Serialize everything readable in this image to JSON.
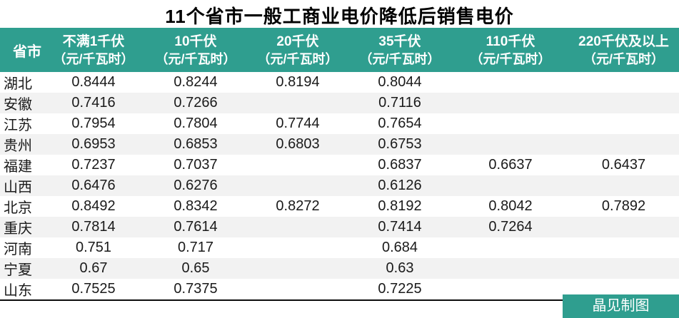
{
  "title": "11个省市一般工商业电价降低后销售电价",
  "footer": {
    "credit": "晶见制图"
  },
  "colors": {
    "header_bg": "#2F9E8F",
    "stripe": "#F2F2F2",
    "border": "#0D0D0D",
    "header_text": "#FFFFFF"
  },
  "chart_data": {
    "type": "table",
    "title": "11个省市一般工商业电价降低后销售电价",
    "columns": [
      {
        "label": "省市",
        "unit": ""
      },
      {
        "label": "不满1千伏",
        "unit": "（元/千瓦时）"
      },
      {
        "label": "10千伏",
        "unit": "（元/千瓦时）"
      },
      {
        "label": "20千伏",
        "unit": "（元/千瓦时）"
      },
      {
        "label": "35千伏",
        "unit": "（元/千瓦时）"
      },
      {
        "label": "110千伏",
        "unit": "（元/千瓦时）"
      },
      {
        "label": "220千伏及以上",
        "unit": "（元/千瓦时）"
      }
    ],
    "rows": [
      {
        "province": "湖北",
        "values": [
          "0.8444",
          "0.8244",
          "0.8194",
          "0.8044",
          "",
          ""
        ]
      },
      {
        "province": "安徽",
        "values": [
          "0.7416",
          "0.7266",
          "",
          "0.7116",
          "",
          ""
        ]
      },
      {
        "province": "江苏",
        "values": [
          "0.7954",
          "0.7804",
          "0.7744",
          "0.7654",
          "",
          ""
        ]
      },
      {
        "province": "贵州",
        "values": [
          "0.6953",
          "0.6853",
          "0.6803",
          "0.6753",
          "",
          ""
        ]
      },
      {
        "province": "福建",
        "values": [
          "0.7237",
          "0.7037",
          "",
          "0.6837",
          "0.6637",
          "0.6437"
        ]
      },
      {
        "province": "山西",
        "values": [
          "0.6476",
          "0.6276",
          "",
          "0.6126",
          "",
          ""
        ]
      },
      {
        "province": "北京",
        "values": [
          "0.8492",
          "0.8342",
          "0.8272",
          "0.8192",
          "0.8042",
          "0.7892"
        ]
      },
      {
        "province": "重庆",
        "values": [
          "0.7814",
          "0.7614",
          "",
          "0.7414",
          "0.7264",
          ""
        ]
      },
      {
        "province": "河南",
        "values": [
          "0.751",
          "0.717",
          "",
          "0.684",
          "",
          ""
        ]
      },
      {
        "province": "宁夏",
        "values": [
          "0.67",
          "0.65",
          "",
          "0.63",
          "",
          ""
        ]
      },
      {
        "province": "山东",
        "values": [
          "0.7525",
          "0.7375",
          "",
          "0.7225",
          "",
          ""
        ]
      }
    ]
  }
}
